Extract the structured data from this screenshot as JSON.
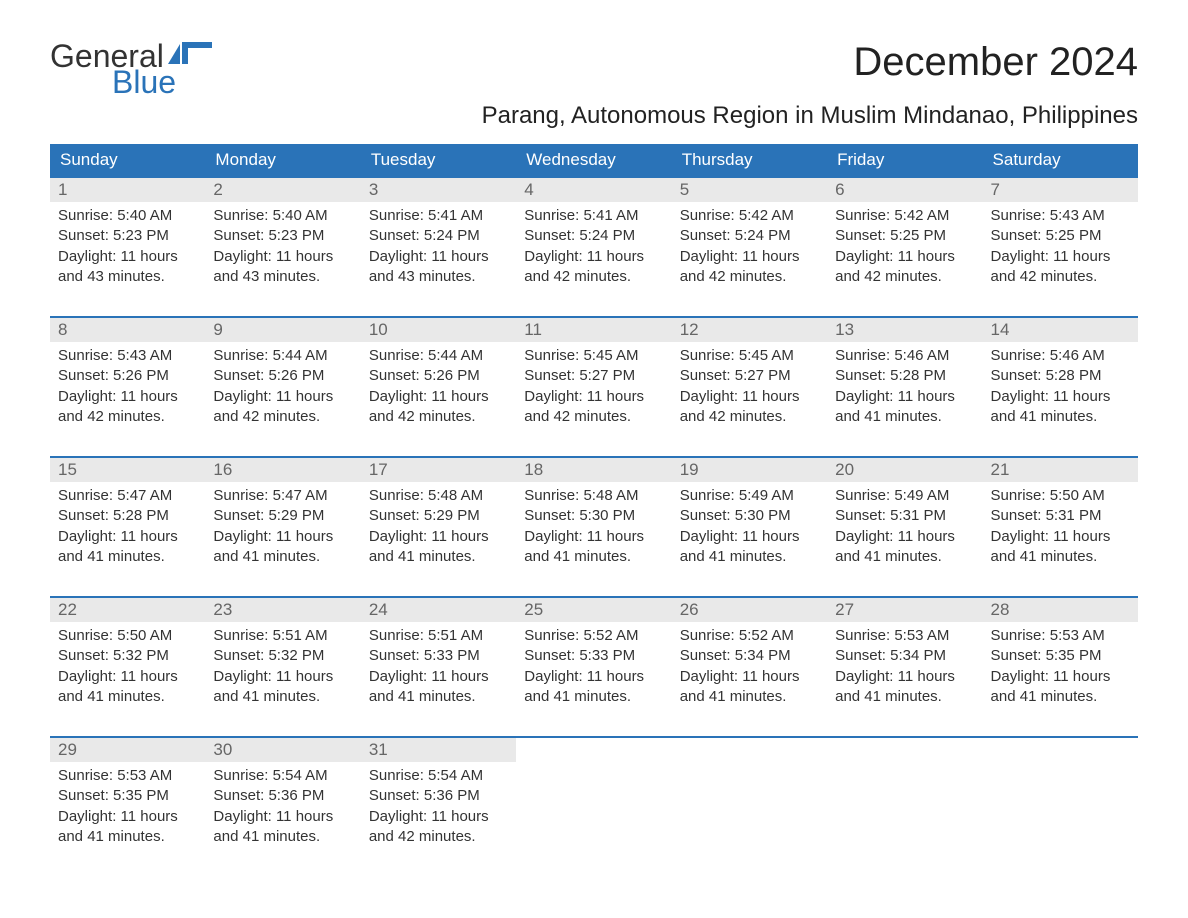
{
  "logo": {
    "text_general": "General",
    "text_blue": "Blue"
  },
  "title": "December 2024",
  "subtitle": "Parang, Autonomous Region in Muslim Mindanao, Philippines",
  "colors": {
    "header_bg": "#2a73b8",
    "header_fg": "#ffffff",
    "daynum_bg": "#e9e9e9",
    "daynum_fg": "#666666",
    "row_border": "#2a73b8",
    "body_fg": "#333333",
    "page_bg": "#ffffff",
    "logo_blue": "#2a73b8"
  },
  "typography": {
    "title_fontsize": 40,
    "subtitle_fontsize": 24,
    "weekday_fontsize": 17,
    "daynum_fontsize": 17,
    "body_fontsize": 15,
    "logo_fontsize": 32
  },
  "weekdays": [
    "Sunday",
    "Monday",
    "Tuesday",
    "Wednesday",
    "Thursday",
    "Friday",
    "Saturday"
  ],
  "weeks": [
    [
      {
        "day": "1",
        "sunrise": "5:40 AM",
        "sunset": "5:23 PM",
        "daylight": "11 hours and 43 minutes."
      },
      {
        "day": "2",
        "sunrise": "5:40 AM",
        "sunset": "5:23 PM",
        "daylight": "11 hours and 43 minutes."
      },
      {
        "day": "3",
        "sunrise": "5:41 AM",
        "sunset": "5:24 PM",
        "daylight": "11 hours and 43 minutes."
      },
      {
        "day": "4",
        "sunrise": "5:41 AM",
        "sunset": "5:24 PM",
        "daylight": "11 hours and 42 minutes."
      },
      {
        "day": "5",
        "sunrise": "5:42 AM",
        "sunset": "5:24 PM",
        "daylight": "11 hours and 42 minutes."
      },
      {
        "day": "6",
        "sunrise": "5:42 AM",
        "sunset": "5:25 PM",
        "daylight": "11 hours and 42 minutes."
      },
      {
        "day": "7",
        "sunrise": "5:43 AM",
        "sunset": "5:25 PM",
        "daylight": "11 hours and 42 minutes."
      }
    ],
    [
      {
        "day": "8",
        "sunrise": "5:43 AM",
        "sunset": "5:26 PM",
        "daylight": "11 hours and 42 minutes."
      },
      {
        "day": "9",
        "sunrise": "5:44 AM",
        "sunset": "5:26 PM",
        "daylight": "11 hours and 42 minutes."
      },
      {
        "day": "10",
        "sunrise": "5:44 AM",
        "sunset": "5:26 PM",
        "daylight": "11 hours and 42 minutes."
      },
      {
        "day": "11",
        "sunrise": "5:45 AM",
        "sunset": "5:27 PM",
        "daylight": "11 hours and 42 minutes."
      },
      {
        "day": "12",
        "sunrise": "5:45 AM",
        "sunset": "5:27 PM",
        "daylight": "11 hours and 42 minutes."
      },
      {
        "day": "13",
        "sunrise": "5:46 AM",
        "sunset": "5:28 PM",
        "daylight": "11 hours and 41 minutes."
      },
      {
        "day": "14",
        "sunrise": "5:46 AM",
        "sunset": "5:28 PM",
        "daylight": "11 hours and 41 minutes."
      }
    ],
    [
      {
        "day": "15",
        "sunrise": "5:47 AM",
        "sunset": "5:28 PM",
        "daylight": "11 hours and 41 minutes."
      },
      {
        "day": "16",
        "sunrise": "5:47 AM",
        "sunset": "5:29 PM",
        "daylight": "11 hours and 41 minutes."
      },
      {
        "day": "17",
        "sunrise": "5:48 AM",
        "sunset": "5:29 PM",
        "daylight": "11 hours and 41 minutes."
      },
      {
        "day": "18",
        "sunrise": "5:48 AM",
        "sunset": "5:30 PM",
        "daylight": "11 hours and 41 minutes."
      },
      {
        "day": "19",
        "sunrise": "5:49 AM",
        "sunset": "5:30 PM",
        "daylight": "11 hours and 41 minutes."
      },
      {
        "day": "20",
        "sunrise": "5:49 AM",
        "sunset": "5:31 PM",
        "daylight": "11 hours and 41 minutes."
      },
      {
        "day": "21",
        "sunrise": "5:50 AM",
        "sunset": "5:31 PM",
        "daylight": "11 hours and 41 minutes."
      }
    ],
    [
      {
        "day": "22",
        "sunrise": "5:50 AM",
        "sunset": "5:32 PM",
        "daylight": "11 hours and 41 minutes."
      },
      {
        "day": "23",
        "sunrise": "5:51 AM",
        "sunset": "5:32 PM",
        "daylight": "11 hours and 41 minutes."
      },
      {
        "day": "24",
        "sunrise": "5:51 AM",
        "sunset": "5:33 PM",
        "daylight": "11 hours and 41 minutes."
      },
      {
        "day": "25",
        "sunrise": "5:52 AM",
        "sunset": "5:33 PM",
        "daylight": "11 hours and 41 minutes."
      },
      {
        "day": "26",
        "sunrise": "5:52 AM",
        "sunset": "5:34 PM",
        "daylight": "11 hours and 41 minutes."
      },
      {
        "day": "27",
        "sunrise": "5:53 AM",
        "sunset": "5:34 PM",
        "daylight": "11 hours and 41 minutes."
      },
      {
        "day": "28",
        "sunrise": "5:53 AM",
        "sunset": "5:35 PM",
        "daylight": "11 hours and 41 minutes."
      }
    ],
    [
      {
        "day": "29",
        "sunrise": "5:53 AM",
        "sunset": "5:35 PM",
        "daylight": "11 hours and 41 minutes."
      },
      {
        "day": "30",
        "sunrise": "5:54 AM",
        "sunset": "5:36 PM",
        "daylight": "11 hours and 41 minutes."
      },
      {
        "day": "31",
        "sunrise": "5:54 AM",
        "sunset": "5:36 PM",
        "daylight": "11 hours and 42 minutes."
      },
      null,
      null,
      null,
      null
    ]
  ],
  "labels": {
    "sunrise": "Sunrise: ",
    "sunset": "Sunset: ",
    "daylight": "Daylight: "
  }
}
